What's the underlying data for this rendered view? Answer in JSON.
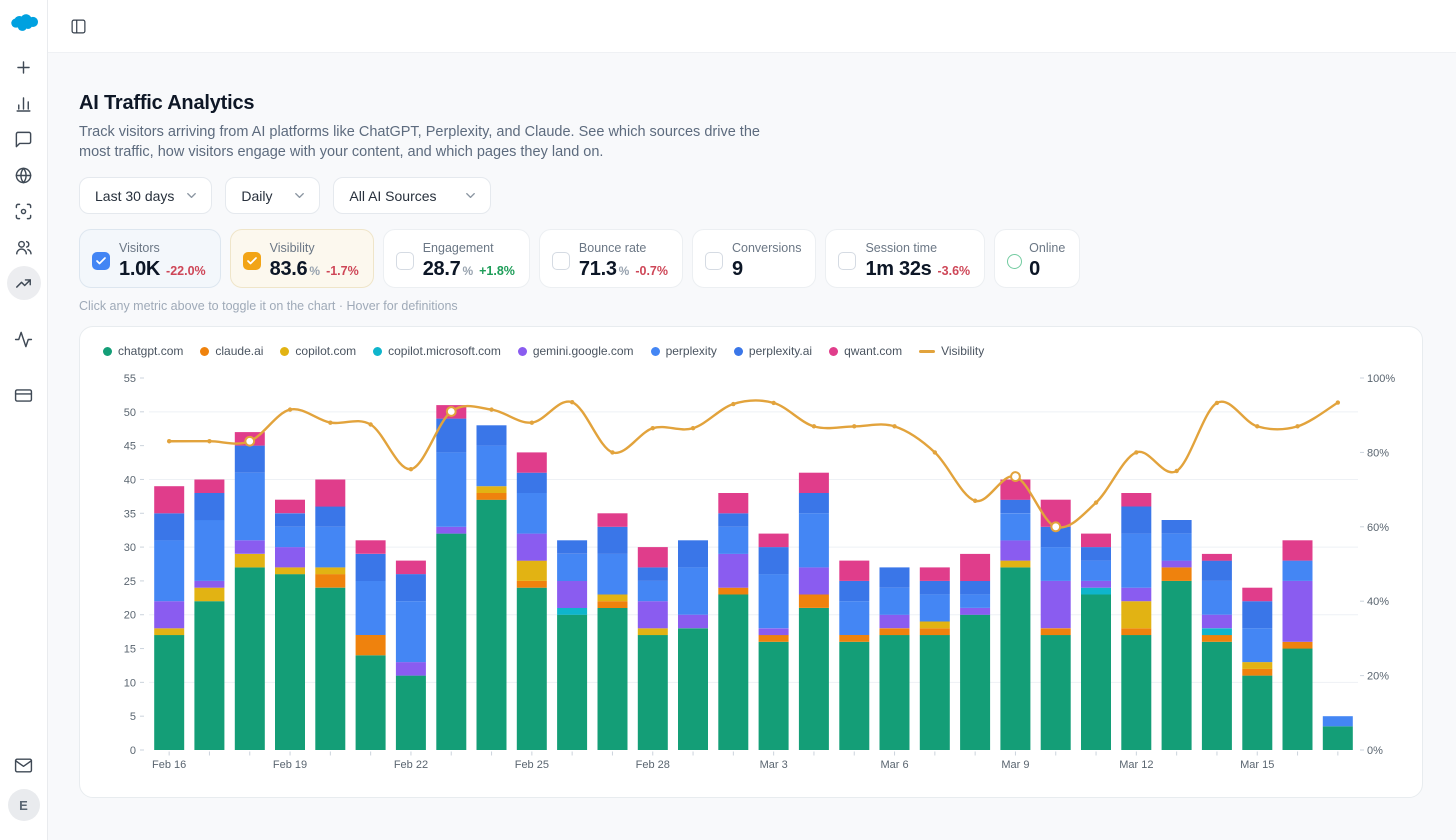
{
  "colors": {
    "negative": "#CE4657",
    "positive": "#1D9D58",
    "accent_blue": "#4285F4",
    "accent_amber": "#F2A416",
    "visibility_line": "#E2A33C",
    "logo_blue": "#00A1E0"
  },
  "sidebar": {
    "icons": [
      "plus",
      "bar-chart",
      "message",
      "globe",
      "scan-eye",
      "users",
      "trending-up",
      "activity",
      "credit-card",
      "mail"
    ],
    "active_icon": "trending-up",
    "avatar_initial": "E"
  },
  "topbar": {
    "toggle_icon": "panel-left"
  },
  "page": {
    "title": "AI Traffic Analytics",
    "description": "Track visitors arriving from AI platforms like ChatGPT, Perplexity, and Claude. See which sources drive the most traffic, how visitors engage with your content, and which pages they land on.",
    "filters": [
      {
        "label": "Last 30 days"
      },
      {
        "label": "Daily"
      },
      {
        "label": "All AI Sources"
      }
    ],
    "metrics": [
      {
        "label": "Visitors",
        "value": "1.0K",
        "delta": "-22.0%",
        "state": "checked-blue"
      },
      {
        "label": "Visibility",
        "value": "83.6",
        "unit": "%",
        "delta": "-1.7%",
        "state": "checked-amber"
      },
      {
        "label": "Engagement",
        "value": "28.7",
        "unit": "%",
        "delta": "+1.8%",
        "state": "unchecked"
      },
      {
        "label": "Bounce rate",
        "value": "71.3",
        "unit": "%",
        "delta": "-0.7%",
        "state": "unchecked"
      },
      {
        "label": "Conversions",
        "value": "9",
        "state": "unchecked"
      },
      {
        "label": "Session time",
        "value": "1m 32s",
        "delta": "-3.6%",
        "state": "unchecked"
      },
      {
        "label": "Online",
        "value": "0",
        "state": "online-indicator"
      }
    ],
    "hint": "Click any metric above to toggle it on the chart · Hover for definitions"
  },
  "chart_data": {
    "type": "stacked-bar-line",
    "categories": [
      "Feb 16",
      "Feb 17",
      "Feb 18",
      "Feb 19",
      "Feb 20",
      "Feb 21",
      "Feb 22",
      "Feb 23",
      "Feb 24",
      "Feb 25",
      "Feb 26",
      "Feb 27",
      "Feb 28",
      "Mar 1",
      "Mar 2",
      "Mar 3",
      "Mar 4",
      "Mar 5",
      "Mar 6",
      "Mar 7",
      "Mar 8",
      "Mar 9",
      "Mar 10",
      "Mar 11",
      "Mar 12",
      "Mar 13",
      "Mar 14",
      "Mar 15",
      "Mar 16",
      "Mar 17"
    ],
    "x_label_every": 3,
    "x_labels_shown": [
      "Feb 16",
      "Feb 19",
      "Feb 22",
      "Feb 25",
      "Feb 28",
      "Mar 3",
      "Mar 6",
      "Mar 9",
      "Mar 12",
      "Mar 15"
    ],
    "left_axis": {
      "min": 0,
      "max": 55,
      "tick_step": 5,
      "grid_step": 10
    },
    "right_axis": {
      "min": 0,
      "max": 100,
      "tick_step": 20,
      "suffix": "%"
    },
    "legend_position": "top-left",
    "series": [
      {
        "name": "chatgpt.com",
        "color": "#149E77",
        "values": [
          17,
          22,
          27,
          26,
          24,
          14,
          11,
          32,
          37,
          24,
          20,
          21,
          17,
          18,
          23,
          16,
          21,
          16,
          17,
          17,
          20,
          27,
          17,
          23,
          17,
          25,
          16,
          11,
          15,
          3.5
        ]
      },
      {
        "name": "claude.ai",
        "color": "#EF820D",
        "values": [
          0,
          0,
          0,
          0,
          2,
          3,
          0,
          0,
          1,
          1,
          0,
          1,
          0,
          0,
          1,
          1,
          2,
          1,
          1,
          1,
          0,
          0,
          1,
          0,
          1,
          2,
          1,
          1,
          1,
          0
        ]
      },
      {
        "name": "copilot.com",
        "color": "#E2B313",
        "values": [
          1,
          2,
          2,
          1,
          1,
          0,
          0,
          0,
          1,
          3,
          0,
          1,
          1,
          0,
          0,
          0,
          0,
          0,
          0,
          1,
          0,
          1,
          0,
          0,
          4,
          0,
          0,
          1,
          0,
          0
        ]
      },
      {
        "name": "copilot.microsoft.com",
        "color": "#0FB5CC",
        "values": [
          0,
          0,
          0,
          0,
          0,
          0,
          0,
          0,
          0,
          0,
          1,
          0,
          0,
          0,
          0,
          0,
          0,
          0,
          0,
          0,
          0,
          0,
          0,
          1,
          0,
          0,
          1,
          0,
          0,
          0
        ]
      },
      {
        "name": "gemini.google.com",
        "color": "#8A5CF0",
        "values": [
          4,
          1,
          2,
          3,
          0,
          0,
          2,
          1,
          0,
          4,
          4,
          0,
          4,
          2,
          5,
          1,
          4,
          0,
          2,
          0,
          1,
          3,
          7,
          1,
          2,
          1,
          2,
          0,
          9,
          0
        ]
      },
      {
        "name": "perplexity",
        "color": "#4486F4",
        "values": [
          9,
          9,
          10,
          3,
          6,
          8,
          9,
          11,
          6,
          6,
          4,
          6,
          3,
          7,
          4,
          8,
          8,
          5,
          4,
          4,
          2,
          4,
          5,
          3,
          8,
          4,
          5,
          5,
          3,
          1.5
        ]
      },
      {
        "name": "perplexity.ai",
        "color": "#3A76E8",
        "values": [
          4,
          4,
          4,
          2,
          3,
          4,
          4,
          5,
          3,
          3,
          2,
          4,
          2,
          4,
          2,
          4,
          3,
          3,
          3,
          2,
          2,
          2,
          3,
          2,
          4,
          2,
          3,
          4,
          0,
          0
        ]
      },
      {
        "name": "qwant.com",
        "color": "#E03D8B",
        "values": [
          4,
          2,
          2,
          2,
          4,
          2,
          2,
          2,
          0,
          3,
          0,
          2,
          3,
          0,
          3,
          2,
          3,
          3,
          0,
          2,
          4,
          3,
          4,
          2,
          2,
          0,
          1,
          2,
          3,
          0
        ]
      }
    ],
    "line": {
      "name": "Visibility",
      "color": "#E2A33C",
      "axis": "right",
      "values": [
        83,
        83,
        83,
        91.5,
        88,
        87.5,
        75.5,
        91,
        91.5,
        88,
        93.5,
        80,
        86.5,
        86.5,
        93,
        93.3,
        87,
        87,
        87,
        80,
        67,
        73.5,
        60,
        66.5,
        80,
        75,
        93.3,
        87,
        87,
        93.4
      ],
      "highlight_points": [
        2,
        7,
        21,
        22
      ]
    }
  }
}
